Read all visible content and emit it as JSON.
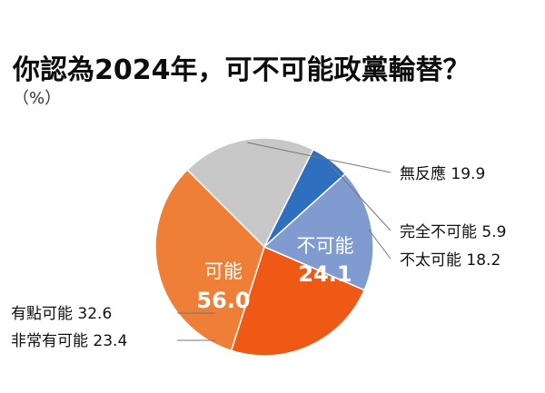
{
  "chart_data": {
    "type": "pie",
    "title": "你認為2024年，可不可能政黨輪替？",
    "unit_label": "（%）",
    "slices": [
      {
        "label": "無反應",
        "value": 19.9,
        "color": "#c8c8c8"
      },
      {
        "label": "完全不可能",
        "value": 5.9,
        "color": "#2f6fbf"
      },
      {
        "label": "不太可能",
        "value": 18.2,
        "color": "#7f9bd0"
      },
      {
        "label": "非常有可能",
        "value": 23.4,
        "color": "#ee5a16"
      },
      {
        "label": "有點可能",
        "value": 32.6,
        "color": "#ef7f36"
      }
    ],
    "groups": [
      {
        "label": "不可能",
        "value": "24.1"
      },
      {
        "label": "可能",
        "value": "56.0"
      }
    ]
  }
}
